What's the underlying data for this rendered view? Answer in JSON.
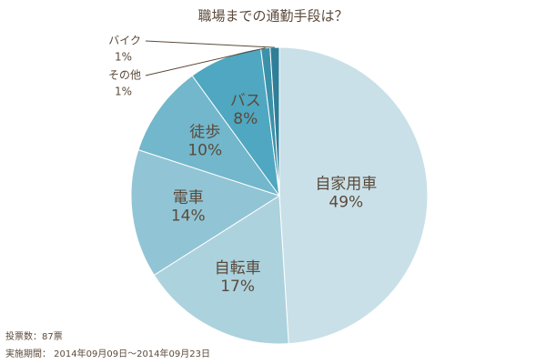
{
  "chart_data": {
    "type": "pie",
    "title": "職場までの通勤手段は？",
    "categories": [
      "自家用車",
      "自転車",
      "電車",
      "徒歩",
      "バス",
      "その他",
      "バイク"
    ],
    "values": [
      49,
      17,
      14,
      10,
      8,
      1,
      1
    ],
    "value_labels": [
      "49%",
      "17%",
      "14%",
      "10%",
      "8%",
      "1%",
      "1%"
    ],
    "colors": [
      "#c9e0e8",
      "#acd2de",
      "#91c5d5",
      "#72b7cc",
      "#4fa7c1",
      "#3c91aa",
      "#2e7e97"
    ],
    "notes": [
      "投票数：87票",
      "実施期間： 2014年09月09日～2014年09月23日"
    ]
  }
}
